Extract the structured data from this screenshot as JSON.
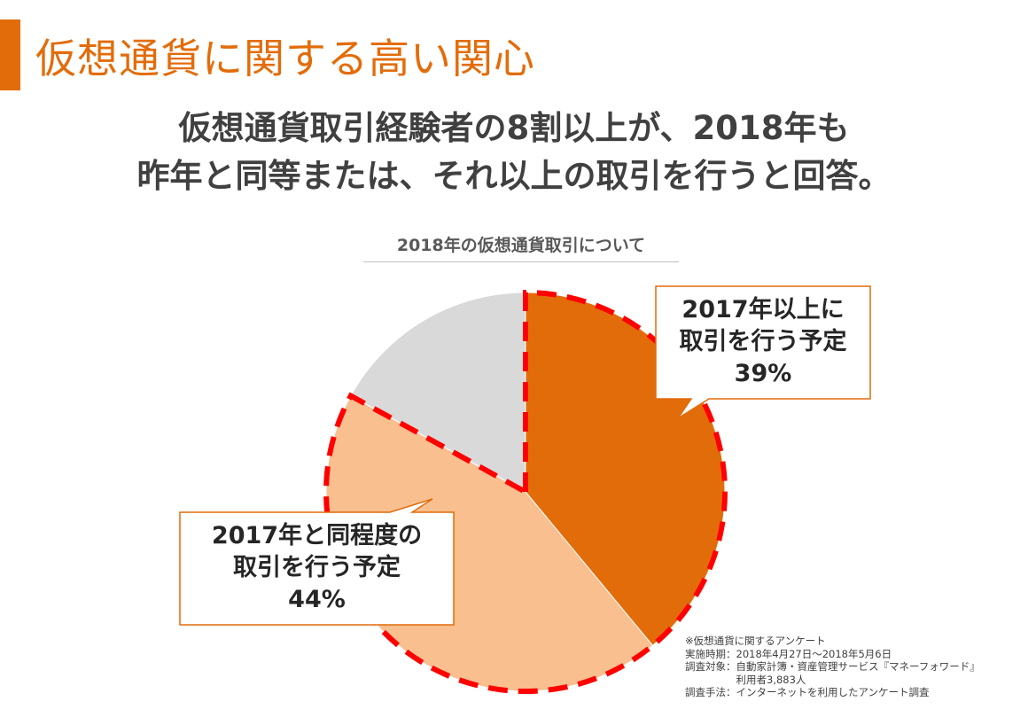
{
  "slide": {
    "title": "仮想通貨に関する高い関心",
    "headline_line1": "仮想通貨取引経験者の8割以上が、2018年も",
    "headline_line2": "昨年と同等または、それ以上の取引を行うと回答。"
  },
  "colors": {
    "accent": "#E36C0A",
    "slice_more": "#E36C0A",
    "slice_same": "#F9BF8F",
    "slice_other": "#D9D9D9",
    "dash": "#FF0000"
  },
  "chart_data": {
    "type": "pie",
    "title": "2018年の仮想通貨取引について",
    "start": "top",
    "direction": "clockwise",
    "slices": [
      {
        "label_line1": "2017年以上に",
        "label_line2": "取引を行う予定",
        "value_label": "39%",
        "value": 39,
        "color": "#E36C0A"
      },
      {
        "label_line1": "2017年と同程度の",
        "label_line2": "取引を行う予定",
        "value_label": "44%",
        "value": 44,
        "color": "#F9BF8F"
      },
      {
        "value": 17,
        "color": "#D9D9D9"
      }
    ],
    "highlight": "dashed red outline around the 39% and 44% slices"
  },
  "footnote": {
    "line1": "※仮想通貨に関するアンケート",
    "line2": "実施時期：2018年4月27日～2018年5月6日",
    "line3": "調査対象：自動家計簿・資産管理サービス『マネーフォワード』",
    "line4": "　　　　　利用者3,883人",
    "line5": "調査手法：インターネットを利用したアンケート調査"
  }
}
